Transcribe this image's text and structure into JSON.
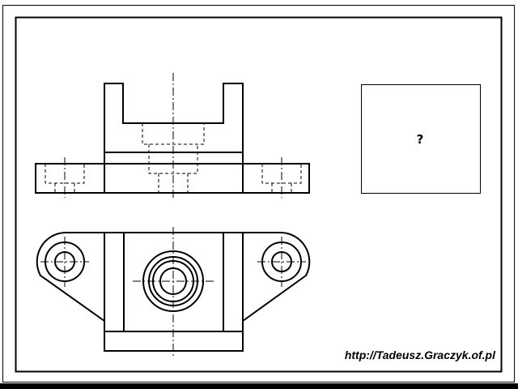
{
  "question_box": {
    "mark": "?"
  },
  "credit": {
    "url_text": "http://Tadeusz.Graczyk.of.pl"
  },
  "colors": {
    "line": "#000000",
    "background": "#ffffff"
  }
}
